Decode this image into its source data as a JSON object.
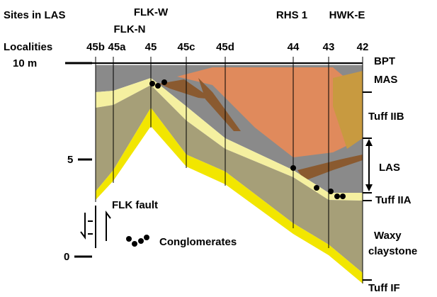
{
  "header": {
    "sites_label": "Sites in LAS",
    "sites": [
      "FLK-N",
      "FLK-W",
      "RHS 1",
      "HWK-E"
    ],
    "localities_label": "Localities",
    "localities": [
      "45b",
      "45a",
      "45",
      "45c",
      "45d",
      "44",
      "43",
      "42"
    ]
  },
  "scale": {
    "top": "10 m",
    "middle": "5",
    "bottom": "0"
  },
  "units": [
    "BPT",
    "MAS",
    "Tuff IIB",
    "LAS",
    "Tuff IIA",
    "Waxy",
    "claystone",
    "Tuff IF"
  ],
  "legend": {
    "fault": "FLK fault",
    "conglomerates": "Conglomerates"
  }
}
